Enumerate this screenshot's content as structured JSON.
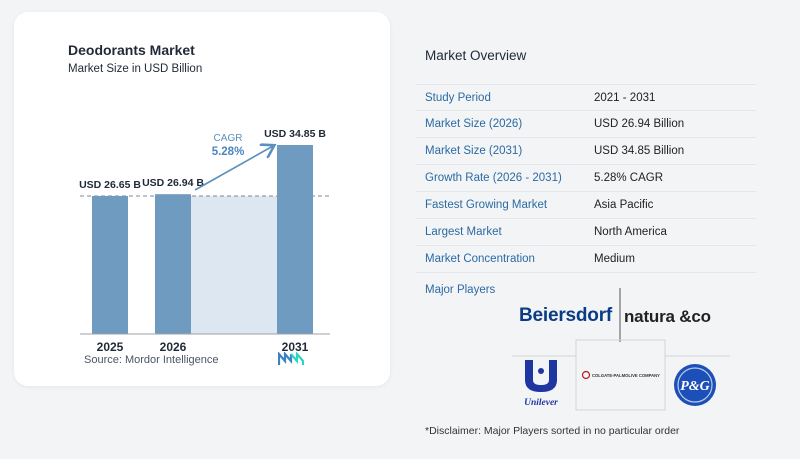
{
  "chart_data": {
    "type": "bar",
    "title": "Deodorants Market",
    "subtitle": "Market Size in USD Billion",
    "categories": [
      "2025",
      "2026",
      "2031"
    ],
    "values": [
      26.65,
      26.94,
      34.85
    ],
    "value_labels": [
      "USD 26.65 B",
      "USD 26.94 B",
      "USD 34.85 B"
    ],
    "cagr_label": "CAGR",
    "cagr_value": "5.28%",
    "bar_color": "#6f9bc0",
    "projection_fill": "#dde7f1",
    "grid": false
  },
  "source": "Source:  Mordor Intelligence",
  "overview": {
    "title": "Market Overview",
    "rows": [
      {
        "key": "Study Period",
        "value": "2021 - 2031"
      },
      {
        "key": "Market Size (2026)",
        "value": "USD 26.94 Billion"
      },
      {
        "key": "Market Size (2031)",
        "value": "USD 34.85 Billion"
      },
      {
        "key": "Growth Rate (2026 - 2031)",
        "value": "5.28% CAGR"
      },
      {
        "key": "Fastest Growing Market",
        "value": "Asia Pacific"
      },
      {
        "key": "Largest Market",
        "value": "North America"
      },
      {
        "key": "Market Concentration",
        "value": "Medium"
      }
    ]
  },
  "players": {
    "title": "Major Players",
    "logos": {
      "beiersdorf": "Beiersdorf",
      "natura": "natura &co",
      "unilever": "Unilever",
      "colgate": "COLGATE-PALMOLIVE COMPANY",
      "pg": "P&G"
    }
  },
  "disclaimer": "*Disclaimer: Major Players sorted in no particular order"
}
